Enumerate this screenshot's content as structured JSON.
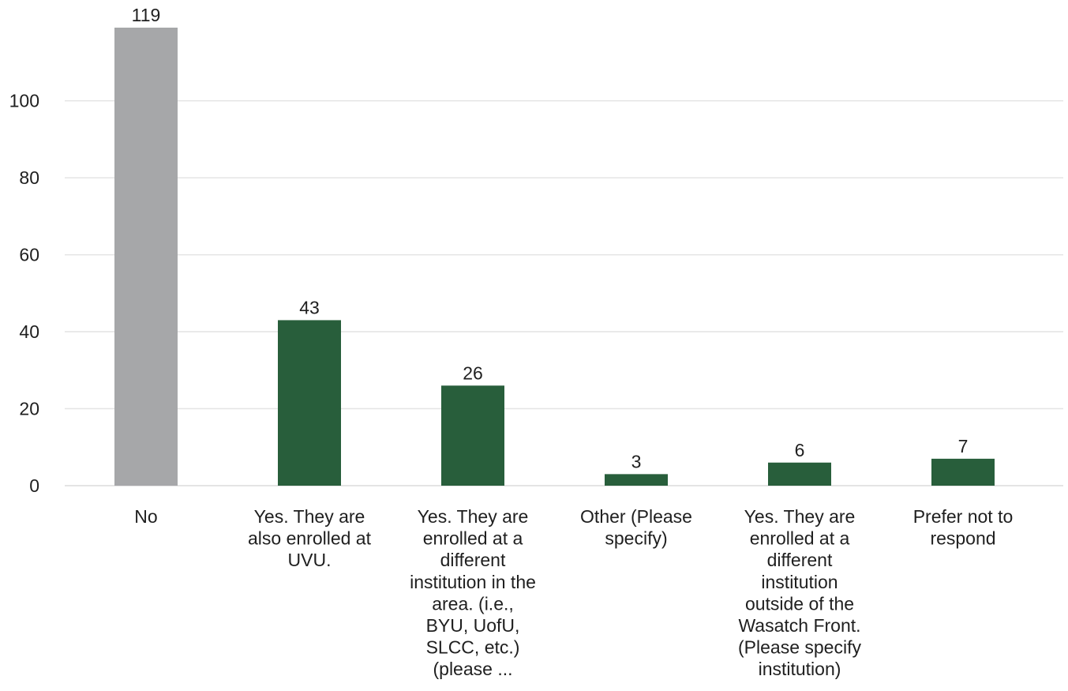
{
  "chart_data": {
    "type": "bar",
    "categories": [
      [
        "No"
      ],
      [
        "Yes. They are",
        "also enrolled at",
        "UVU."
      ],
      [
        "Yes. They are",
        "enrolled at a",
        "different",
        "institution in the",
        "area. (i.e.,",
        "BYU, UofU,",
        "SLCC, etc.)",
        "(please ..."
      ],
      [
        "Other (Please",
        "specify)"
      ],
      [
        "Yes. They are",
        "enrolled at a",
        "different",
        "institution",
        "outside of the",
        "Wasatch Front.",
        "(Please specify",
        "institution)"
      ],
      [
        "Prefer not to",
        "respond"
      ]
    ],
    "values": [
      119,
      43,
      26,
      3,
      6,
      7
    ],
    "bar_colors": [
      "#a6a7a9",
      "#285e3b",
      "#285e3b",
      "#285e3b",
      "#285e3b",
      "#285e3b"
    ],
    "yticks": [
      0,
      20,
      40,
      60,
      80,
      100
    ],
    "ylim": [
      0,
      119
    ],
    "grid": true,
    "title": "",
    "xlabel": "",
    "ylabel": ""
  }
}
